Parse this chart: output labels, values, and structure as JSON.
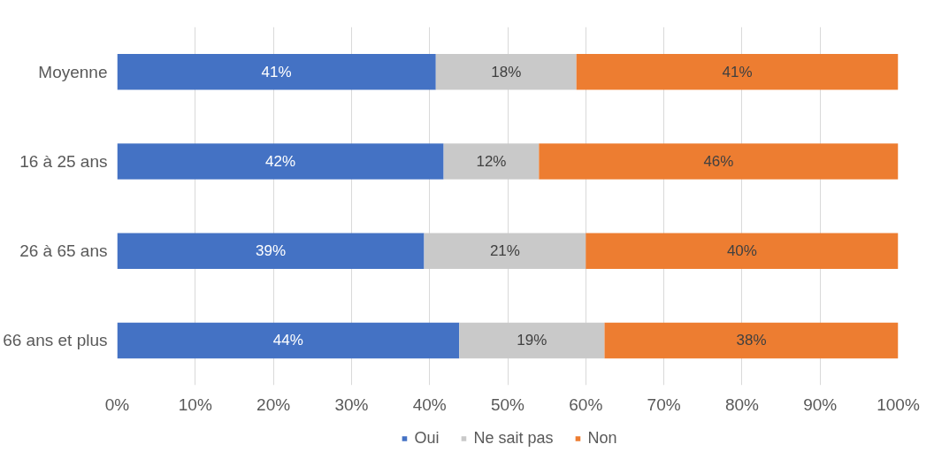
{
  "chart_data": {
    "type": "bar",
    "orientation": "horizontal",
    "stacked": true,
    "categories": [
      "Moyenne",
      "16 à 25 ans",
      "26 à 65 ans",
      "66 ans et plus"
    ],
    "series": [
      {
        "name": "Oui",
        "color": "#4472c4",
        "values": [
          40.8,
          41.8,
          39.3,
          43.8
        ],
        "value_labels": [
          "41%",
          "42%",
          "39%",
          "44%"
        ]
      },
      {
        "name": "Ne sait pas",
        "color": "#c9c9c9",
        "values": [
          18.0,
          12.2,
          20.7,
          18.6
        ],
        "value_labels": [
          "18%",
          "12%",
          "21%",
          "19%"
        ]
      },
      {
        "name": "Non",
        "color": "#ed7d31",
        "values": [
          41.2,
          46.0,
          40.0,
          37.6
        ],
        "value_labels": [
          "41%",
          "46%",
          "40%",
          "38%"
        ]
      }
    ],
    "xlim": [
      0,
      100
    ],
    "xticks": [
      {
        "value": 0,
        "label": "0%"
      },
      {
        "value": 10,
        "label": "10%"
      },
      {
        "value": 20,
        "label": "20%"
      },
      {
        "value": 30,
        "label": "30%"
      },
      {
        "value": 40,
        "label": "40%"
      },
      {
        "value": 50,
        "label": "50%"
      },
      {
        "value": 60,
        "label": "60%"
      },
      {
        "value": 70,
        "label": "70%"
      },
      {
        "value": 80,
        "label": "80%"
      },
      {
        "value": 90,
        "label": "90%"
      },
      {
        "value": 100,
        "label": "100%"
      }
    ],
    "grid": "x",
    "legend": "bottom"
  }
}
